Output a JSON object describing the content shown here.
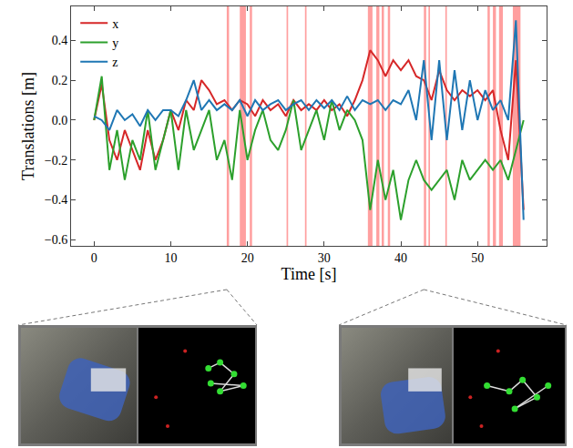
{
  "chart_data": {
    "type": "line",
    "x_label": "Time [s]",
    "y_label": "Translations [m]",
    "x": [
      0,
      1,
      2,
      3,
      4,
      5,
      6,
      7,
      8,
      9,
      10,
      11,
      12,
      13,
      14,
      15,
      16,
      17,
      18,
      19,
      20,
      21,
      22,
      23,
      24,
      25,
      26,
      27,
      28,
      29,
      30,
      31,
      32,
      33,
      34,
      35,
      36,
      37,
      38,
      39,
      40,
      41,
      42,
      43,
      44,
      45,
      46,
      47,
      48,
      49,
      50,
      51,
      52,
      53,
      54,
      55,
      56
    ],
    "series": [
      {
        "name": "x",
        "color": "#d62728",
        "values": [
          0.0,
          0.18,
          -0.1,
          -0.2,
          -0.05,
          -0.15,
          -0.25,
          -0.05,
          -0.2,
          -0.1,
          0.05,
          -0.05,
          0.1,
          0.05,
          0.2,
          0.15,
          0.08,
          0.1,
          0.05,
          0.1,
          0.08,
          0.02,
          0.1,
          0.05,
          0.08,
          0.02,
          0.1,
          0.05,
          0.08,
          0.05,
          0.1,
          0.05,
          0.08,
          0.02,
          0.1,
          0.2,
          0.35,
          0.3,
          0.22,
          0.3,
          0.25,
          0.3,
          0.22,
          0.2,
          0.1,
          0.25,
          0.15,
          0.1,
          0.15,
          0.12,
          0.15,
          0.1,
          0.15,
          -0.05,
          -0.2,
          0.3,
          -0.45
        ]
      },
      {
        "name": "y",
        "color": "#2ca02c",
        "values": [
          0.0,
          0.22,
          -0.25,
          -0.05,
          -0.3,
          -0.1,
          -0.2,
          0.05,
          -0.25,
          -0.1,
          0.05,
          -0.25,
          0.05,
          -0.15,
          -0.05,
          0.05,
          -0.2,
          -0.1,
          -0.3,
          0.05,
          -0.2,
          -0.05,
          0.05,
          -0.1,
          -0.15,
          -0.05,
          0.1,
          -0.15,
          -0.05,
          0.05,
          -0.1,
          0.1,
          -0.05,
          0.05,
          0.0,
          -0.1,
          -0.45,
          -0.2,
          -0.4,
          -0.25,
          -0.5,
          -0.3,
          -0.2,
          -0.3,
          -0.35,
          -0.3,
          -0.25,
          -0.4,
          -0.2,
          -0.3,
          -0.25,
          -0.2,
          -0.25,
          -0.2,
          -0.3,
          -0.15,
          0.0
        ]
      },
      {
        "name": "z",
        "color": "#1f77b4",
        "values": [
          0.02,
          0.0,
          -0.05,
          0.05,
          0.0,
          0.03,
          -0.03,
          0.05,
          0.0,
          0.05,
          0.05,
          0.02,
          0.1,
          0.2,
          0.05,
          0.1,
          0.05,
          0.08,
          0.05,
          0.1,
          0.02,
          0.1,
          0.05,
          0.08,
          0.1,
          0.05,
          0.08,
          0.1,
          0.05,
          0.1,
          0.06,
          0.1,
          0.05,
          0.12,
          0.05,
          0.1,
          0.08,
          0.1,
          0.05,
          0.1,
          0.08,
          0.15,
          0.0,
          0.3,
          -0.1,
          0.3,
          -0.1,
          0.25,
          -0.05,
          0.2,
          0.0,
          0.15,
          0.05,
          0.1,
          0.0,
          0.5,
          -0.5
        ]
      }
    ],
    "highlight_intervals": [
      [
        17.3,
        17.6
      ],
      [
        19.0,
        19.8
      ],
      [
        20.3,
        20.6
      ],
      [
        25.1,
        25.3
      ],
      [
        27.5,
        27.7
      ],
      [
        35.7,
        36.3
      ],
      [
        36.8,
        37.2
      ],
      [
        37.5,
        37.8
      ],
      [
        38.3,
        38.6
      ],
      [
        43.0,
        43.3
      ],
      [
        43.6,
        43.8
      ],
      [
        45.8,
        46.0
      ],
      [
        51.3,
        51.6
      ],
      [
        52.0,
        52.4
      ],
      [
        52.8,
        53.3
      ],
      [
        54.6,
        55.6
      ]
    ],
    "xlim": [
      -3,
      59
    ],
    "xticks": [
      0,
      10,
      20,
      30,
      40,
      50
    ],
    "ylim": [
      -0.63,
      0.57
    ],
    "yticks": [
      {
        "value": -0.6,
        "label": "−0.6"
      },
      {
        "value": -0.4,
        "label": "−0.4"
      },
      {
        "value": -0.2,
        "label": "−0.2"
      },
      {
        "value": 0.0,
        "label": "0.0"
      },
      {
        "value": 0.2,
        "label": "0.2"
      },
      {
        "value": 0.4,
        "label": "0.4"
      }
    ],
    "legend": "upper left",
    "grid": false
  }
}
